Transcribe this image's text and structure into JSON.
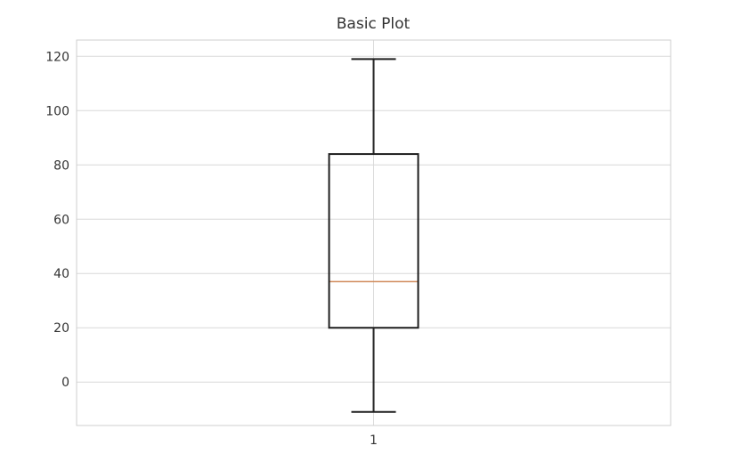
{
  "chart_data": {
    "type": "boxplot",
    "title": "Basic Plot",
    "xlabel": "",
    "ylabel": "",
    "categories": [
      "1"
    ],
    "boxes": [
      {
        "whisker_low": -11,
        "q1": 20,
        "median": 37,
        "q3": 84,
        "whisker_high": 119
      }
    ],
    "ylim": [
      -16,
      126
    ],
    "yticks": [
      0,
      20,
      40,
      60,
      80,
      100,
      120
    ],
    "grid": true,
    "colors": {
      "box": "#1f1f1f",
      "median": "#d08a5a",
      "grid": "#d8d8d8"
    }
  }
}
